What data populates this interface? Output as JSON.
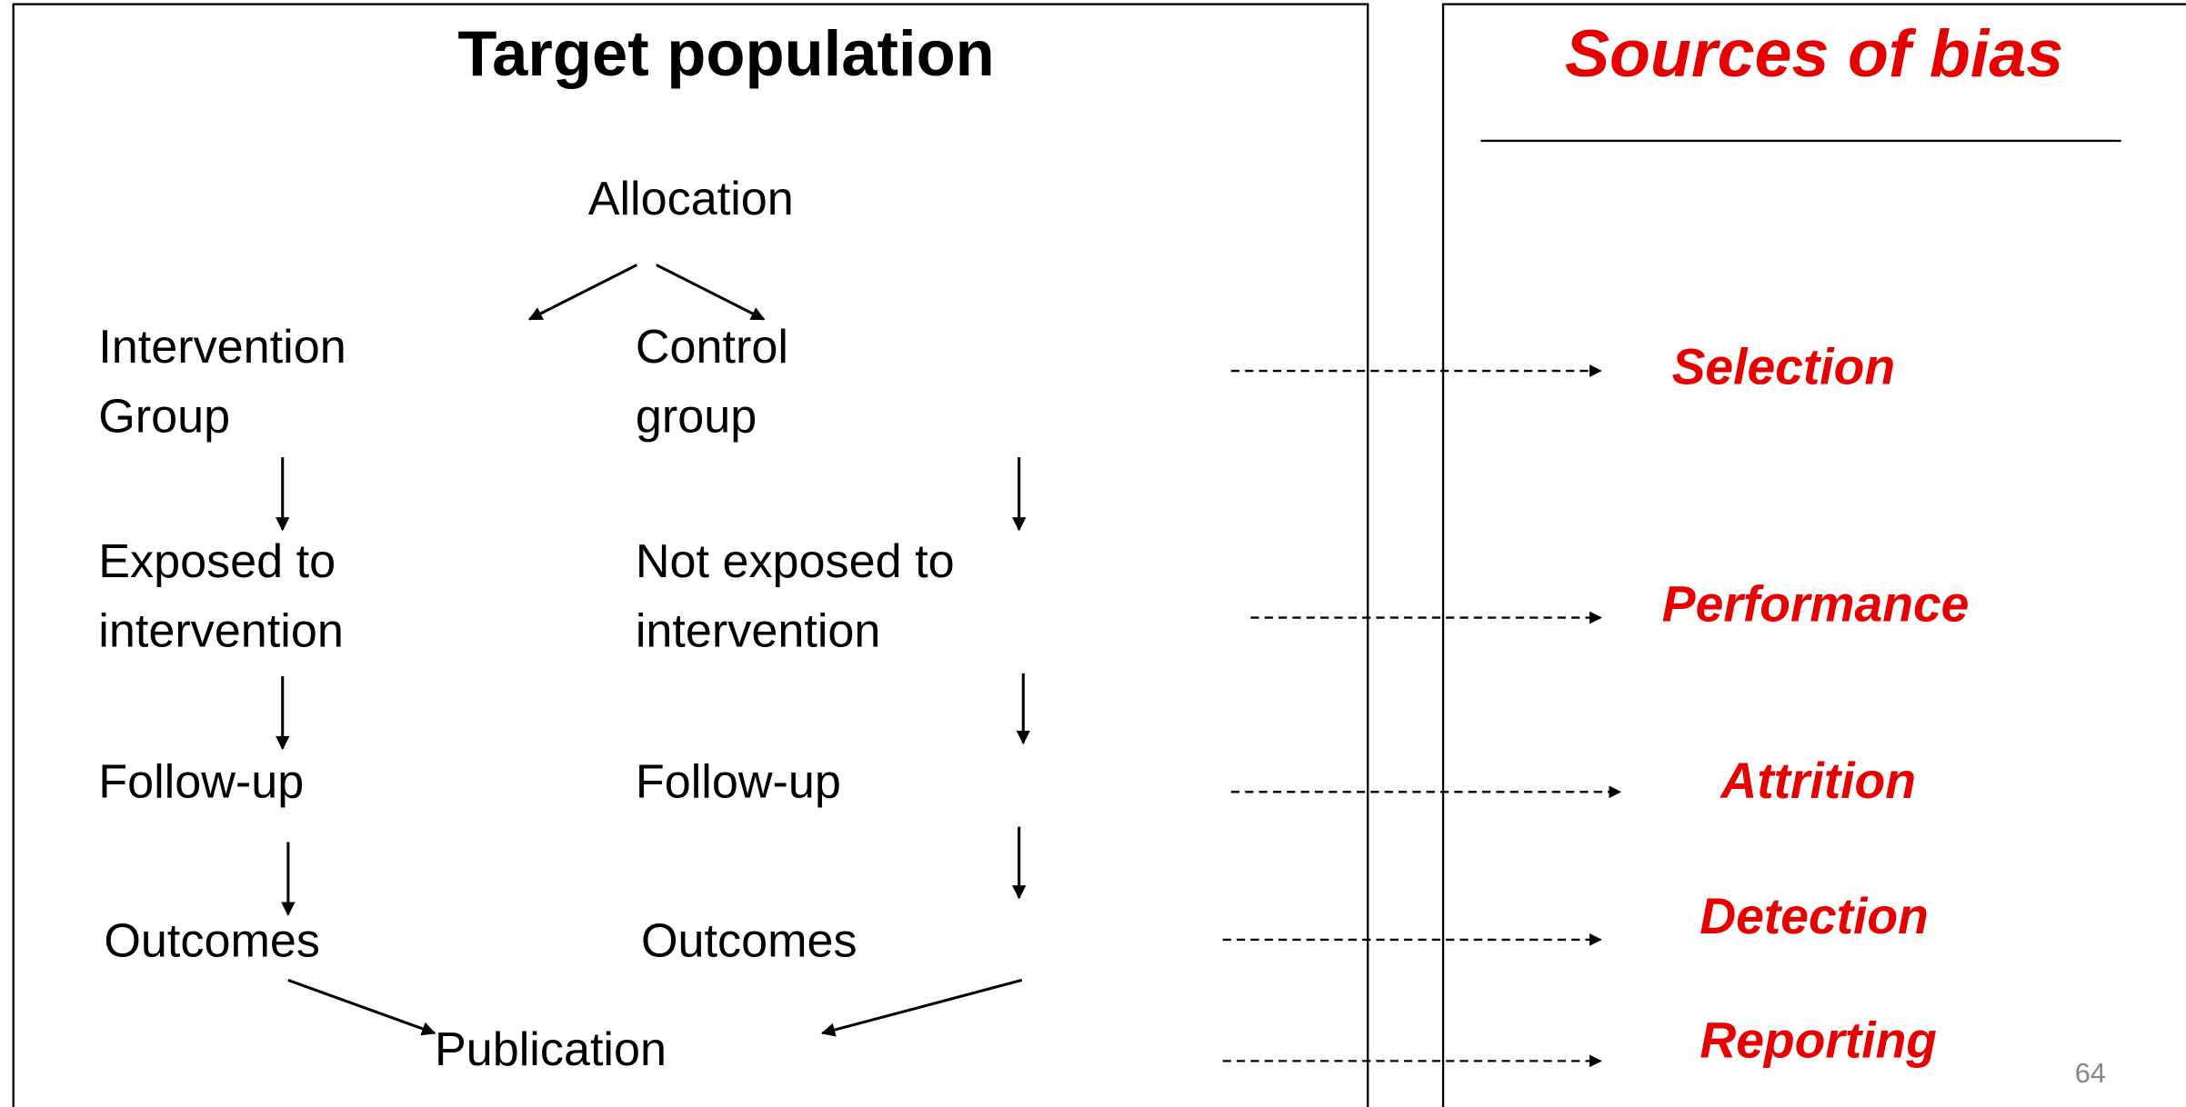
{
  "left_panel": {
    "title": "Target population",
    "nodes": [
      {
        "lines": [
          "Allocation"
        ]
      },
      {
        "lines": [
          "Intervention",
          "Group"
        ]
      },
      {
        "lines": [
          "Control",
          "group"
        ]
      },
      {
        "lines": [
          "Exposed to",
          "intervention"
        ]
      },
      {
        "lines": [
          "Not exposed to",
          "intervention"
        ]
      },
      {
        "lines": [
          "Follow-up"
        ]
      },
      {
        "lines": [
          "Follow-up"
        ]
      },
      {
        "lines": [
          "Outcomes"
        ]
      },
      {
        "lines": [
          "Outcomes"
        ]
      },
      {
        "lines": [
          "Publication"
        ]
      }
    ]
  },
  "right_panel": {
    "title": "Sources of bias",
    "biases": [
      "Selection",
      "Performance",
      "Attrition",
      "Detection",
      "Reporting"
    ]
  },
  "page_number": "64"
}
